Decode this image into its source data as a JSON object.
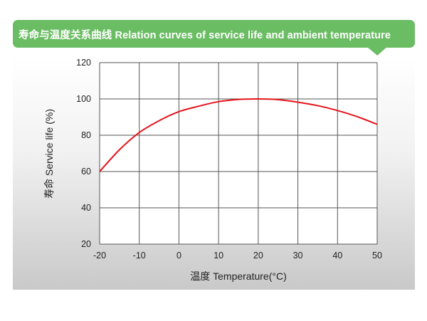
{
  "title": "寿命与温度关系曲线 Relation curves of service life and ambient temperature",
  "colors": {
    "banner": "#6bbd64",
    "curve": "#e5141b",
    "grid": "#555555"
  },
  "chart_data": {
    "type": "line",
    "title": "寿命与温度关系曲线 Relation curves of service life and ambient temperature",
    "xlabel": "温度 Temperature(°C)",
    "ylabel": "寿命 Service life (%)",
    "xlim": [
      -20,
      50
    ],
    "ylim": [
      20,
      120
    ],
    "xticks": [
      "-20",
      "-10",
      "0",
      "10",
      "20",
      "30",
      "40",
      "50"
    ],
    "yticks": [
      "20",
      "40",
      "60",
      "80",
      "100",
      "120"
    ],
    "grid": true,
    "x": [
      -20,
      -15,
      -10,
      -5,
      0,
      5,
      10,
      15,
      20,
      25,
      30,
      35,
      40,
      45,
      50
    ],
    "series": [
      {
        "values": [
          60,
          72,
          81.5,
          88,
          93,
          96,
          98.5,
          99.7,
          100,
          99.6,
          98.2,
          96.3,
          93.6,
          90.2,
          86
        ]
      }
    ]
  }
}
